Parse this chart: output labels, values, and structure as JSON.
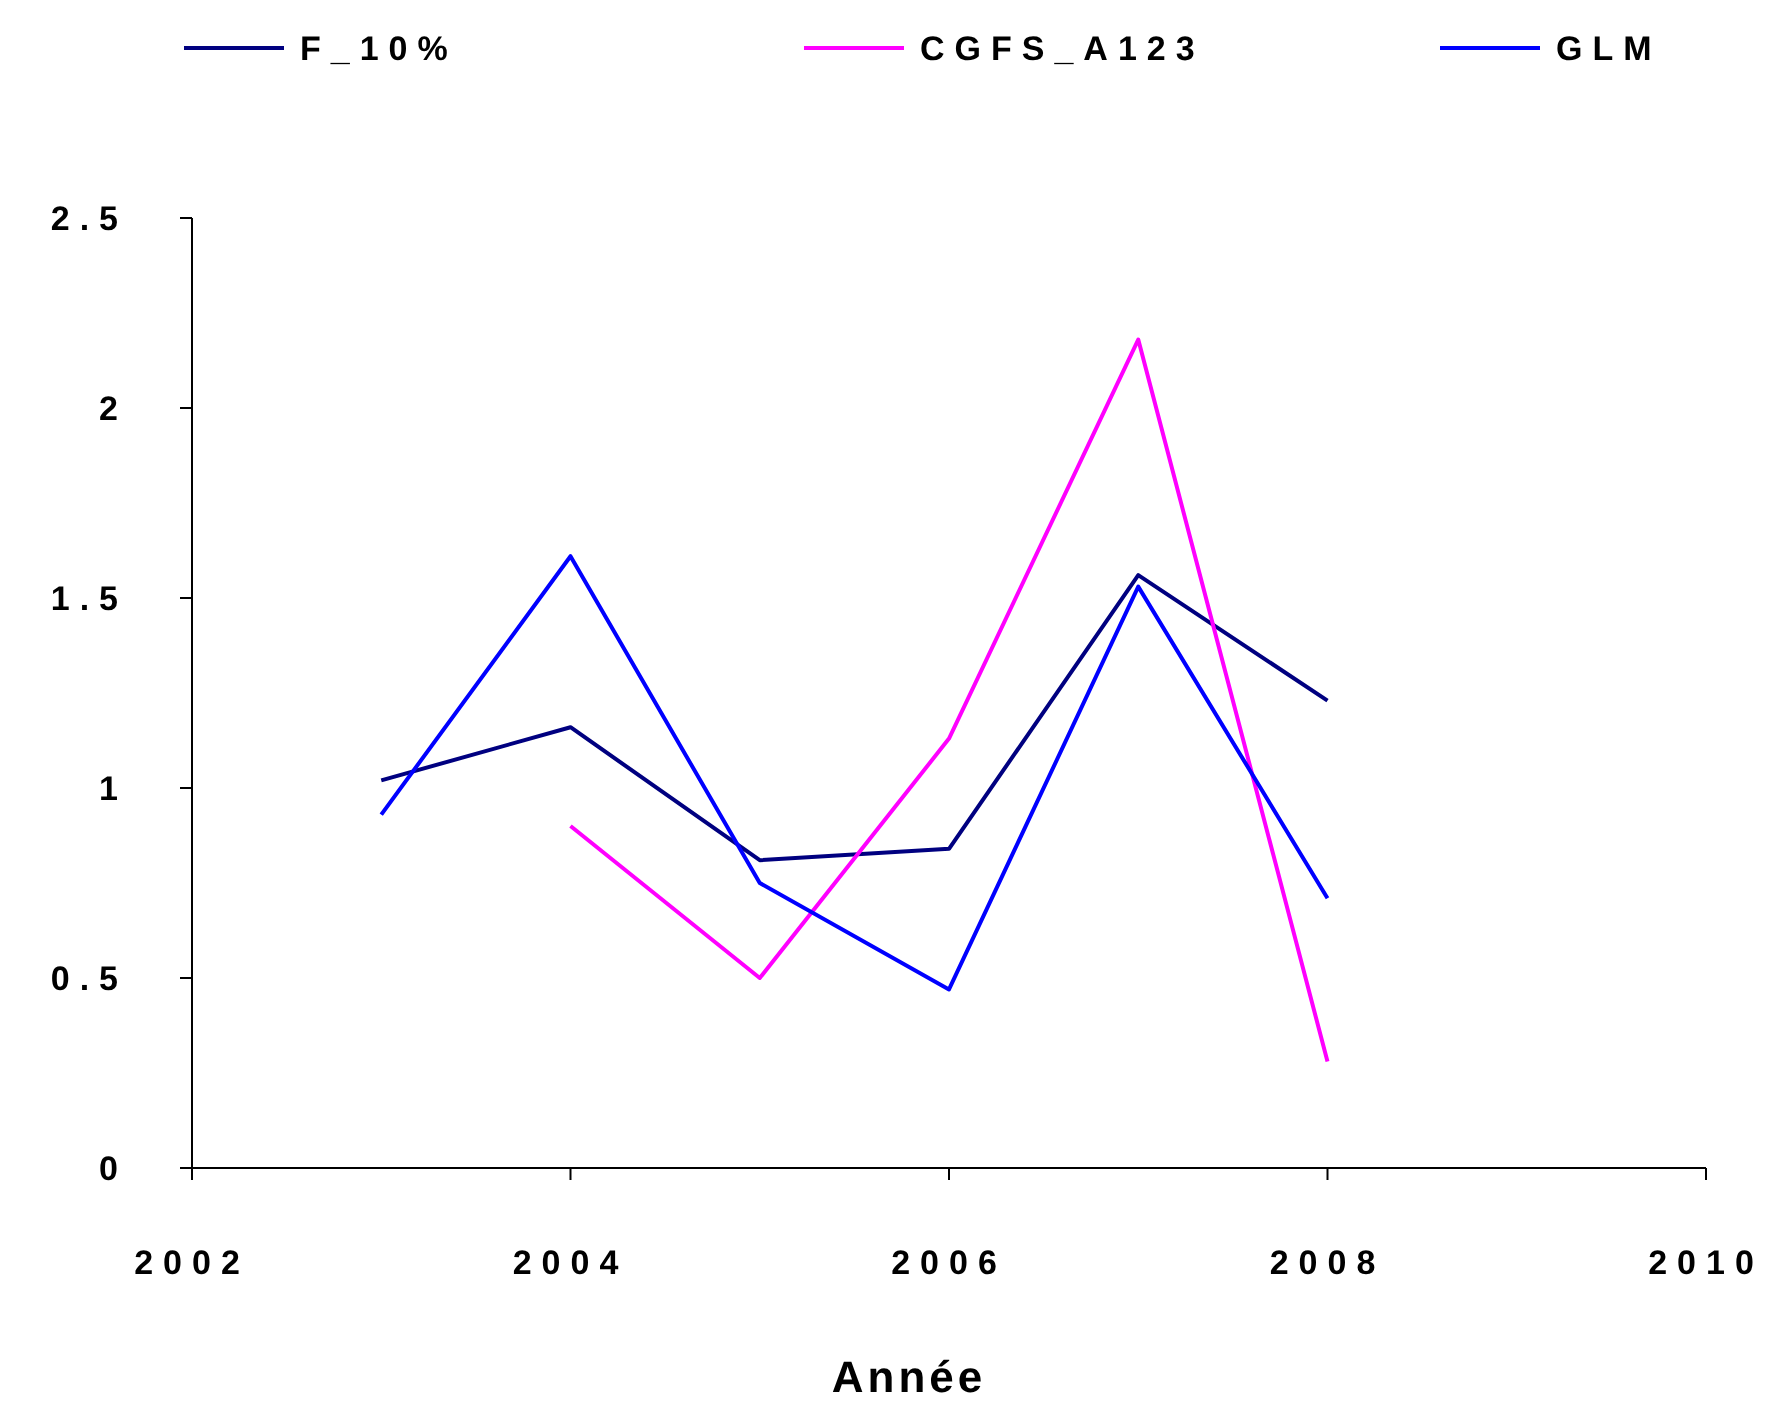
{
  "chart_data": {
    "type": "line",
    "xlabel": "Année",
    "x": [
      2003,
      2004,
      2005,
      2006,
      2007,
      2008
    ],
    "xlim": [
      2002,
      2010
    ],
    "xticks": [
      2002,
      2004,
      2006,
      2008,
      2010
    ],
    "ylim": [
      0,
      2.5
    ],
    "yticks": [
      0,
      0.5,
      1,
      1.5,
      2,
      2.5
    ],
    "grid": false,
    "legend": "top",
    "marker": "none",
    "line_style": "solid",
    "series": [
      {
        "name": "F_10%",
        "color": "#000080",
        "values": [
          1.02,
          1.16,
          0.81,
          0.84,
          1.56,
          1.23
        ]
      },
      {
        "name": "CGFS_A123",
        "color": "#ff00ff",
        "values": [
          null,
          0.9,
          0.5,
          1.13,
          2.18,
          0.28
        ]
      },
      {
        "name": "GLM",
        "color": "#0000ff",
        "values": [
          0.93,
          1.61,
          0.75,
          0.47,
          1.53,
          0.71
        ]
      }
    ]
  }
}
